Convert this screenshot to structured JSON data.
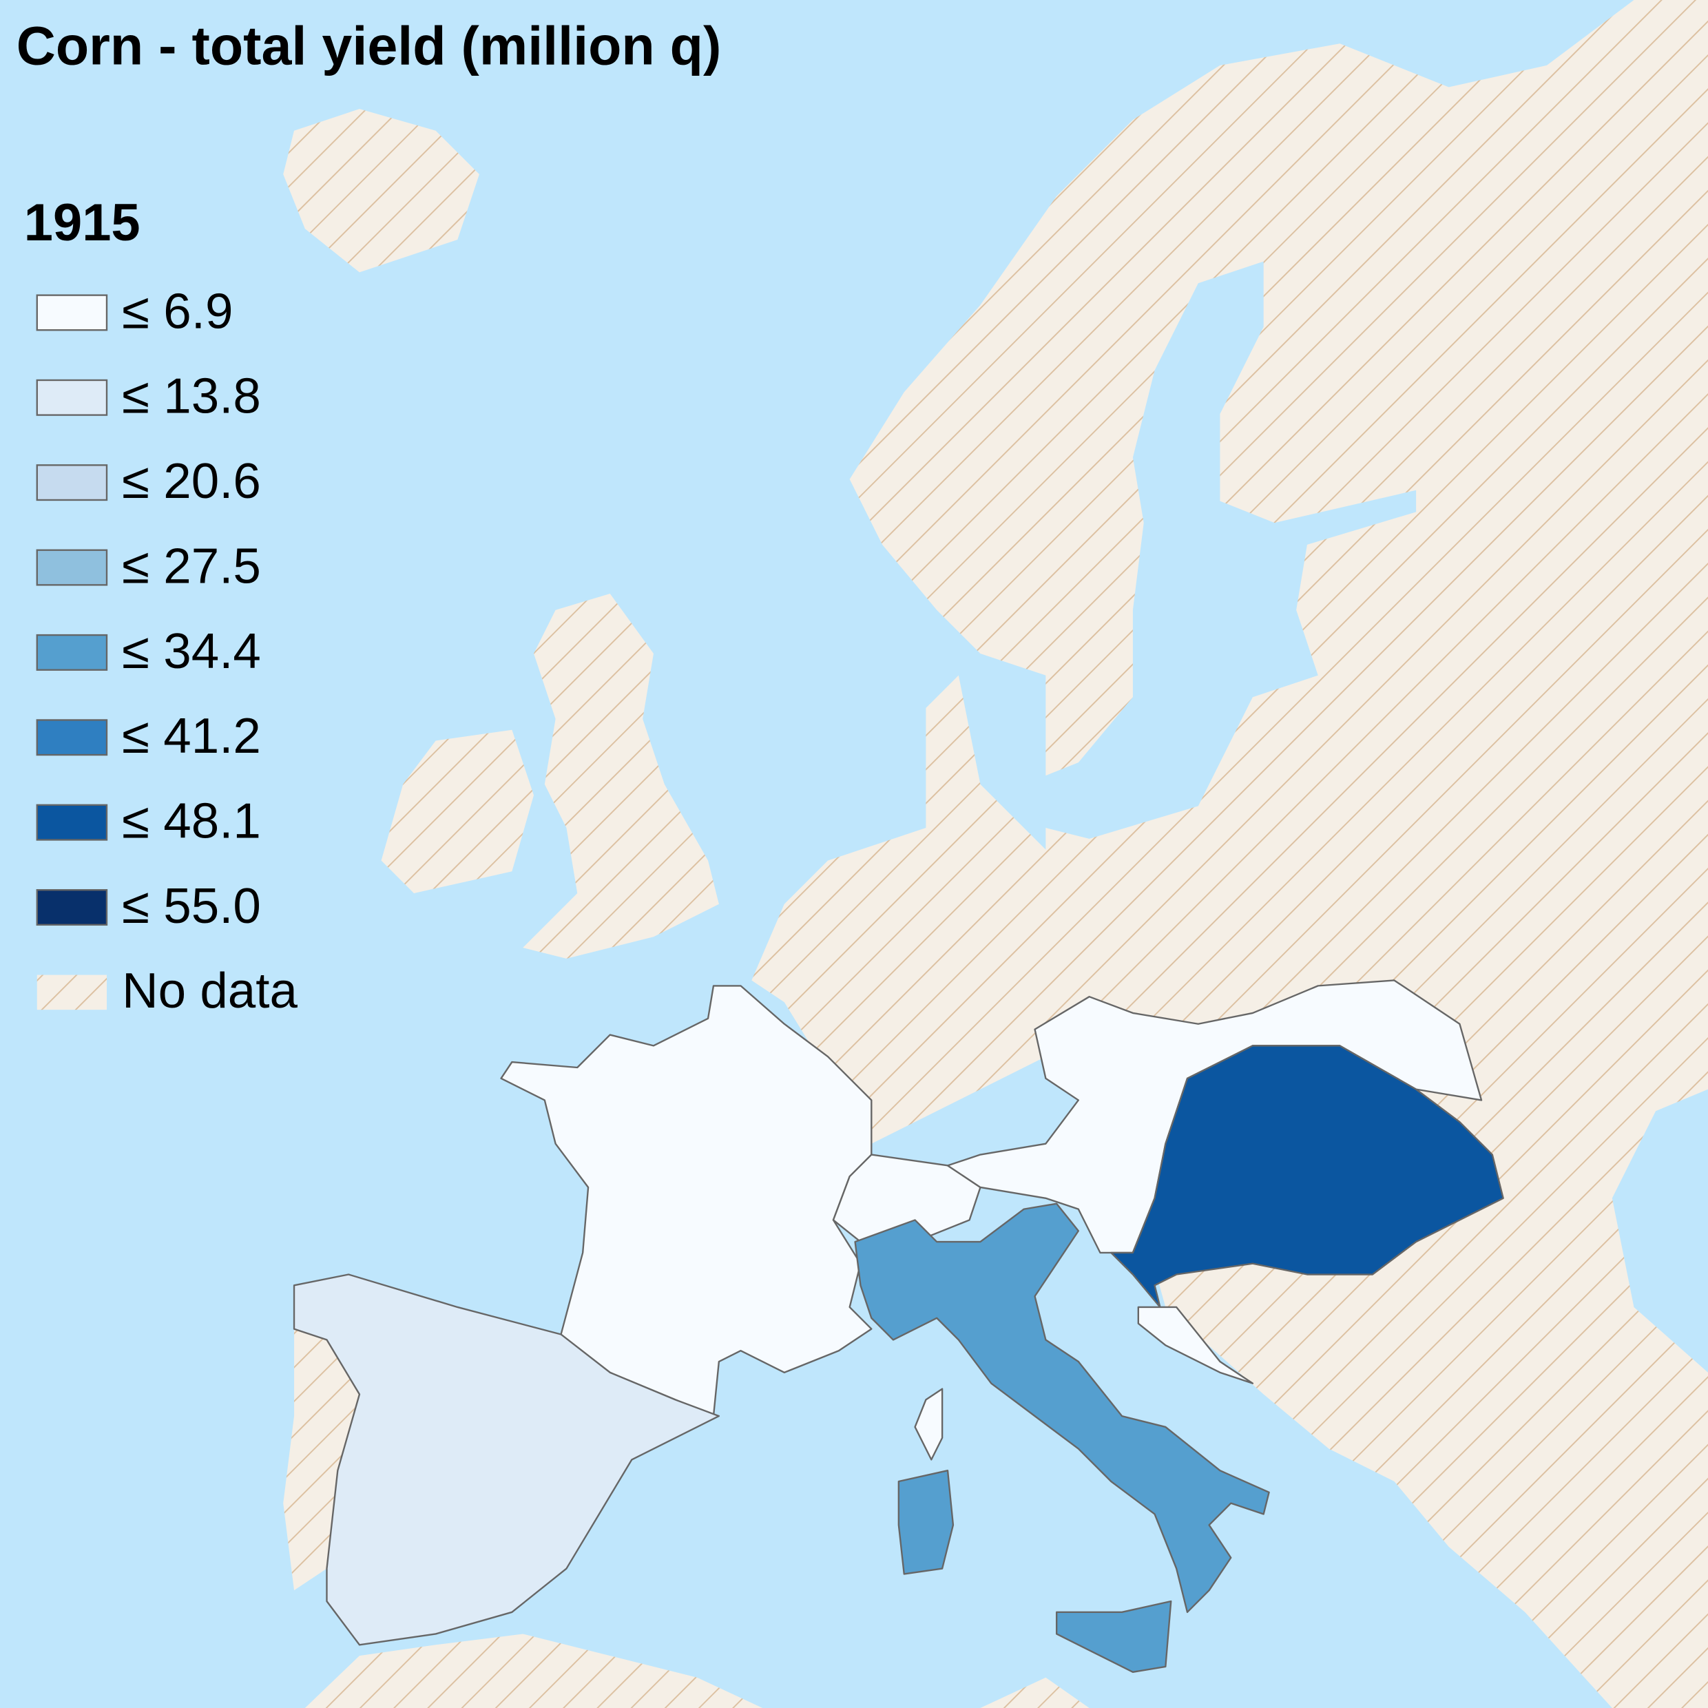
{
  "title": "Corn - total yield (million q)",
  "legend": {
    "title": "1915",
    "items": [
      {
        "label": "≤ 6.9",
        "color": "#f7fbff"
      },
      {
        "label": "≤ 13.8",
        "color": "#deebf7"
      },
      {
        "label": "≤ 20.6",
        "color": "#c6dbef"
      },
      {
        "label": "≤ 27.5",
        "color": "#8fc0de"
      },
      {
        "label": "≤ 34.4",
        "color": "#559fcf"
      },
      {
        "label": "≤ 41.2",
        "color": "#2f7fc1"
      },
      {
        "label": "≤ 48.1",
        "color": "#0b56a0"
      },
      {
        "label": "≤ 55.0",
        "color": "#08306b"
      }
    ],
    "no_data": {
      "label": "No data",
      "color": "#f5efe6",
      "hatch": "#dcc0a0"
    }
  },
  "sea_color": "#bfe6fc",
  "regions": [
    {
      "class": 0
    },
    {
      "class": 1
    },
    {
      "class": 0
    },
    {
      "class": 0
    },
    {
      "class": 6
    },
    {
      "class": 0
    },
    {
      "class": 4
    },
    {
      "class": 4
    },
    {
      "class": 4
    },
    {
      "class": 0
    }
  ]
}
